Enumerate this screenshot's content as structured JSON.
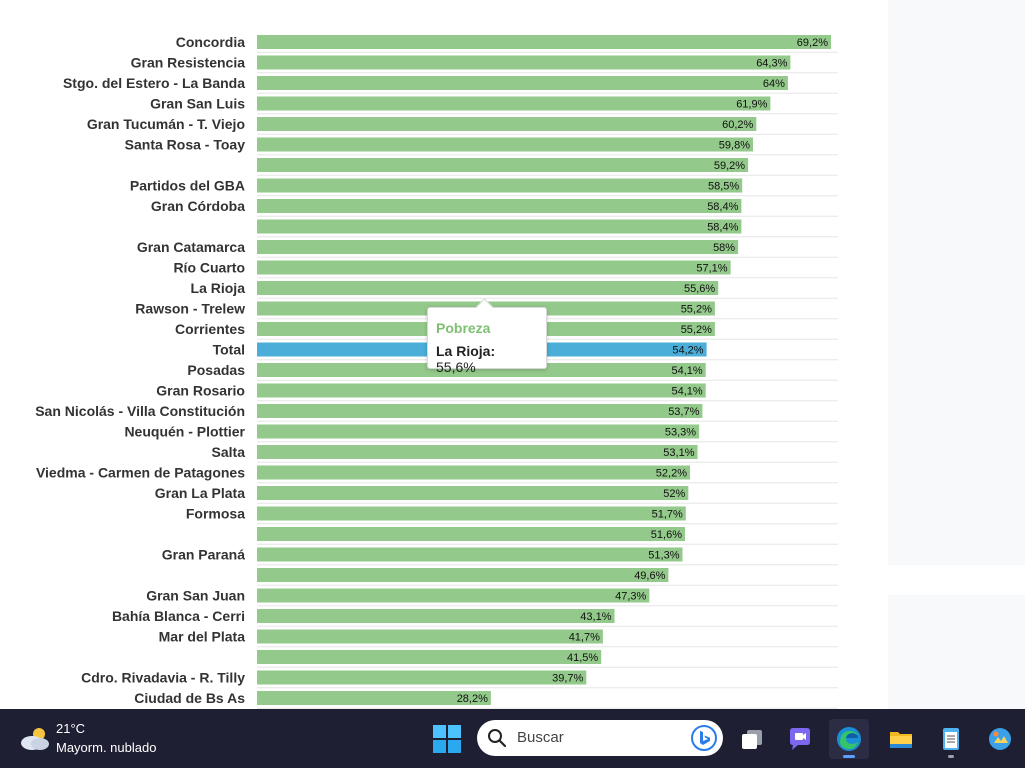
{
  "chart_data": {
    "type": "bar",
    "orientation": "horizontal",
    "categories": [
      "Concordia",
      "Gran Resistencia",
      "Stgo. del Estero - La Banda",
      "Gran San Luis",
      "Gran Tucumán - T. Viejo",
      "Santa Rosa - Toay",
      "",
      "Partidos del GBA",
      "Gran Córdoba",
      "",
      "Gran Catamarca",
      "Río Cuarto",
      "La Rioja",
      "Rawson - Trelew",
      "Corrientes",
      "Total",
      "Posadas",
      "Gran Rosario",
      "San Nicolás - Villa Constitución",
      "Neuquén - Plottier",
      "Salta",
      "Viedma - Carmen de Patagones",
      "Gran La Plata",
      "Formosa",
      "",
      "Gran Paraná",
      "",
      "Gran San Juan",
      "Bahía Blanca - Cerri",
      "Mar del Plata",
      "",
      "Cdro. Rivadavia - R. Tilly",
      "Ciudad de Bs As"
    ],
    "values": [
      69.2,
      64.3,
      64,
      61.9,
      60.2,
      59.8,
      59.2,
      58.5,
      58.4,
      58.4,
      58,
      57.1,
      55.6,
      55.2,
      55.2,
      54.2,
      54.1,
      54.1,
      53.7,
      53.3,
      53.1,
      52.2,
      52,
      51.7,
      51.6,
      51.3,
      49.6,
      47.3,
      43.1,
      41.7,
      41.5,
      39.7,
      28.2
    ],
    "value_labels": [
      "69,2%",
      "64,3%",
      "64%",
      "61,9%",
      "60,2%",
      "59,8%",
      "59,2%",
      "58,5%",
      "58,4%",
      "58,4%",
      "58%",
      "57,1%",
      "55,6%",
      "55,2%",
      "55,2%",
      "54,2%",
      "54,1%",
      "54,1%",
      "53,7%",
      "53,3%",
      "53,1%",
      "52,2%",
      "52%",
      "51,7%",
      "51,6%",
      "51,3%",
      "49,6%",
      "47,3%",
      "43,1%",
      "41,7%",
      "41,5%",
      "39,7%",
      "28,2%"
    ],
    "highlight_category": "Total",
    "xlim": [
      0,
      69.2
    ],
    "colors": {
      "bar": "#93c98a",
      "highlight": "#4aaed9",
      "grid": "#e6e6e6"
    }
  },
  "tooltip": {
    "title": "Pobreza",
    "category": "La Rioja:",
    "value": "55,6%"
  },
  "taskbar": {
    "weather": {
      "temp": "21°C",
      "desc": "Mayorm. nublado",
      "icon": "cloudy-weather-icon"
    },
    "search": {
      "placeholder": "Buscar"
    },
    "apps": [
      "task-view-icon",
      "chat-icon",
      "edge-browser-icon",
      "file-explorer-icon",
      "notepad-icon",
      "gallery-icon"
    ]
  }
}
